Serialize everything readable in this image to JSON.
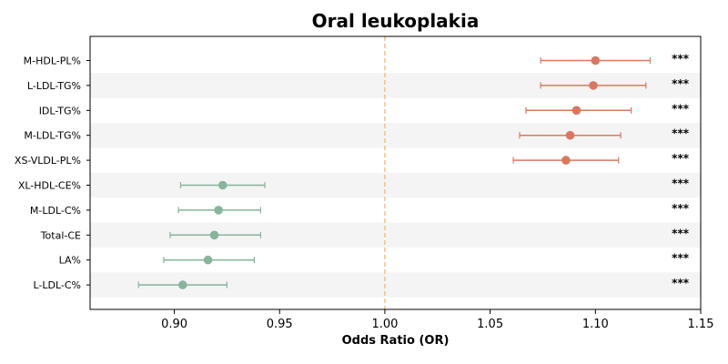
{
  "chart_data": {
    "type": "forest",
    "title": "Oral leukoplakia",
    "xlabel": "Odds Ratio (OR)",
    "ylabel": "",
    "xlim": [
      0.86,
      1.15
    ],
    "xticks": [
      "0.90",
      "0.95",
      "1.00",
      "1.05",
      "1.10",
      "1.15"
    ],
    "reference_line": 1.0,
    "grid": false,
    "colors": {
      "positive": "#d9785f",
      "negative": "#86b59b",
      "reference_line": "#f5c37a",
      "band": "#f4f4f4"
    },
    "rows": [
      {
        "label": "M-HDL-PL%",
        "or": 1.1,
        "ci_low": 1.074,
        "ci_high": 1.126,
        "sig": "***"
      },
      {
        "label": "L-LDL-TG%",
        "or": 1.099,
        "ci_low": 1.074,
        "ci_high": 1.124,
        "sig": "***"
      },
      {
        "label": "IDL-TG%",
        "or": 1.091,
        "ci_low": 1.067,
        "ci_high": 1.117,
        "sig": "***"
      },
      {
        "label": "M-LDL-TG%",
        "or": 1.088,
        "ci_low": 1.064,
        "ci_high": 1.112,
        "sig": "***"
      },
      {
        "label": "XS-VLDL-PL%",
        "or": 1.086,
        "ci_low": 1.061,
        "ci_high": 1.111,
        "sig": "***"
      },
      {
        "label": "XL-HDL-CE%",
        "or": 0.923,
        "ci_low": 0.903,
        "ci_high": 0.943,
        "sig": "***"
      },
      {
        "label": "M-LDL-C%",
        "or": 0.921,
        "ci_low": 0.902,
        "ci_high": 0.941,
        "sig": "***"
      },
      {
        "label": "Total-CE",
        "or": 0.919,
        "ci_low": 0.898,
        "ci_high": 0.941,
        "sig": "***"
      },
      {
        "label": "LA%",
        "or": 0.916,
        "ci_low": 0.895,
        "ci_high": 0.938,
        "sig": "***"
      },
      {
        "label": "L-LDL-C%",
        "or": 0.904,
        "ci_low": 0.883,
        "ci_high": 0.925,
        "sig": "***"
      }
    ]
  }
}
